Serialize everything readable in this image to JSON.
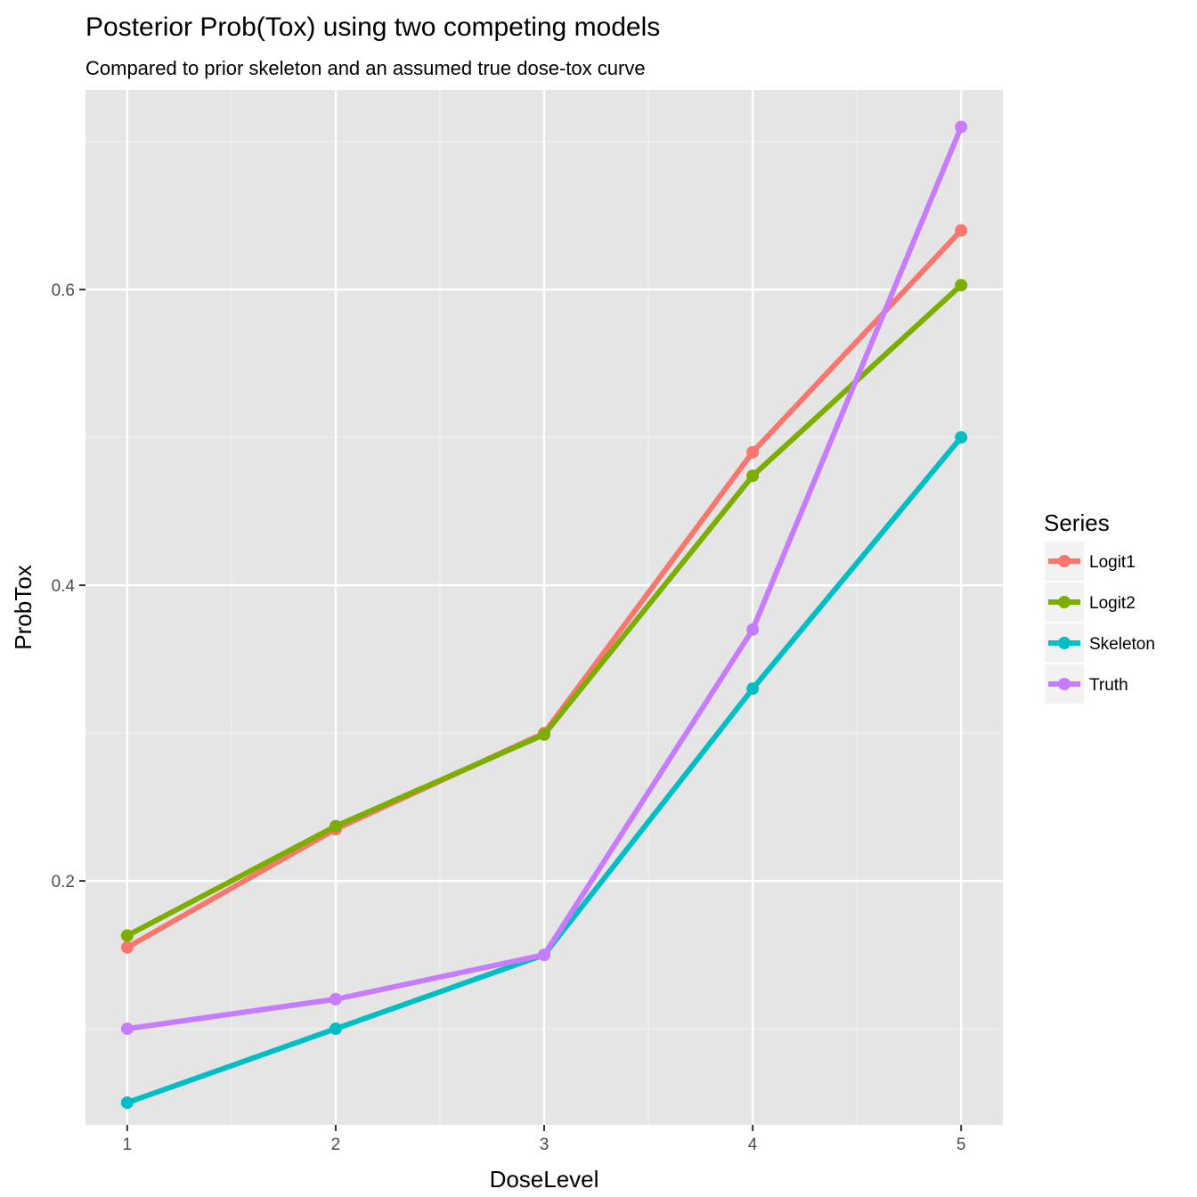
{
  "chart_data": {
    "type": "line",
    "title": "Posterior Prob(Tox) using two competing models",
    "subtitle": "Compared to prior skeleton and an assumed true dose-tox curve",
    "xlabel": "DoseLevel",
    "ylabel": "ProbTox",
    "x": [
      1,
      2,
      3,
      4,
      5
    ],
    "xlim": [
      0.8,
      5.2
    ],
    "ylim": [
      0.035,
      0.735
    ],
    "x_ticks": [
      "1",
      "2",
      "3",
      "4",
      "5"
    ],
    "y_ticks": [
      0.2,
      0.4,
      0.6
    ],
    "y_tick_labels": [
      "0.2",
      "0.4",
      "0.6"
    ],
    "grid": true,
    "legend": {
      "title": "Series",
      "position": "right"
    },
    "series": [
      {
        "name": "Logit1",
        "color": "#F8766D",
        "values": [
          0.155,
          0.235,
          0.3,
          0.49,
          0.64
        ]
      },
      {
        "name": "Logit2",
        "color": "#7CAE00",
        "values": [
          0.163,
          0.237,
          0.299,
          0.474,
          0.603
        ]
      },
      {
        "name": "Skeleton",
        "color": "#00BFC4",
        "values": [
          0.05,
          0.1,
          0.15,
          0.33,
          0.5
        ]
      },
      {
        "name": "Truth",
        "color": "#C77CFF",
        "values": [
          0.1,
          0.12,
          0.15,
          0.37,
          0.71
        ]
      }
    ]
  }
}
